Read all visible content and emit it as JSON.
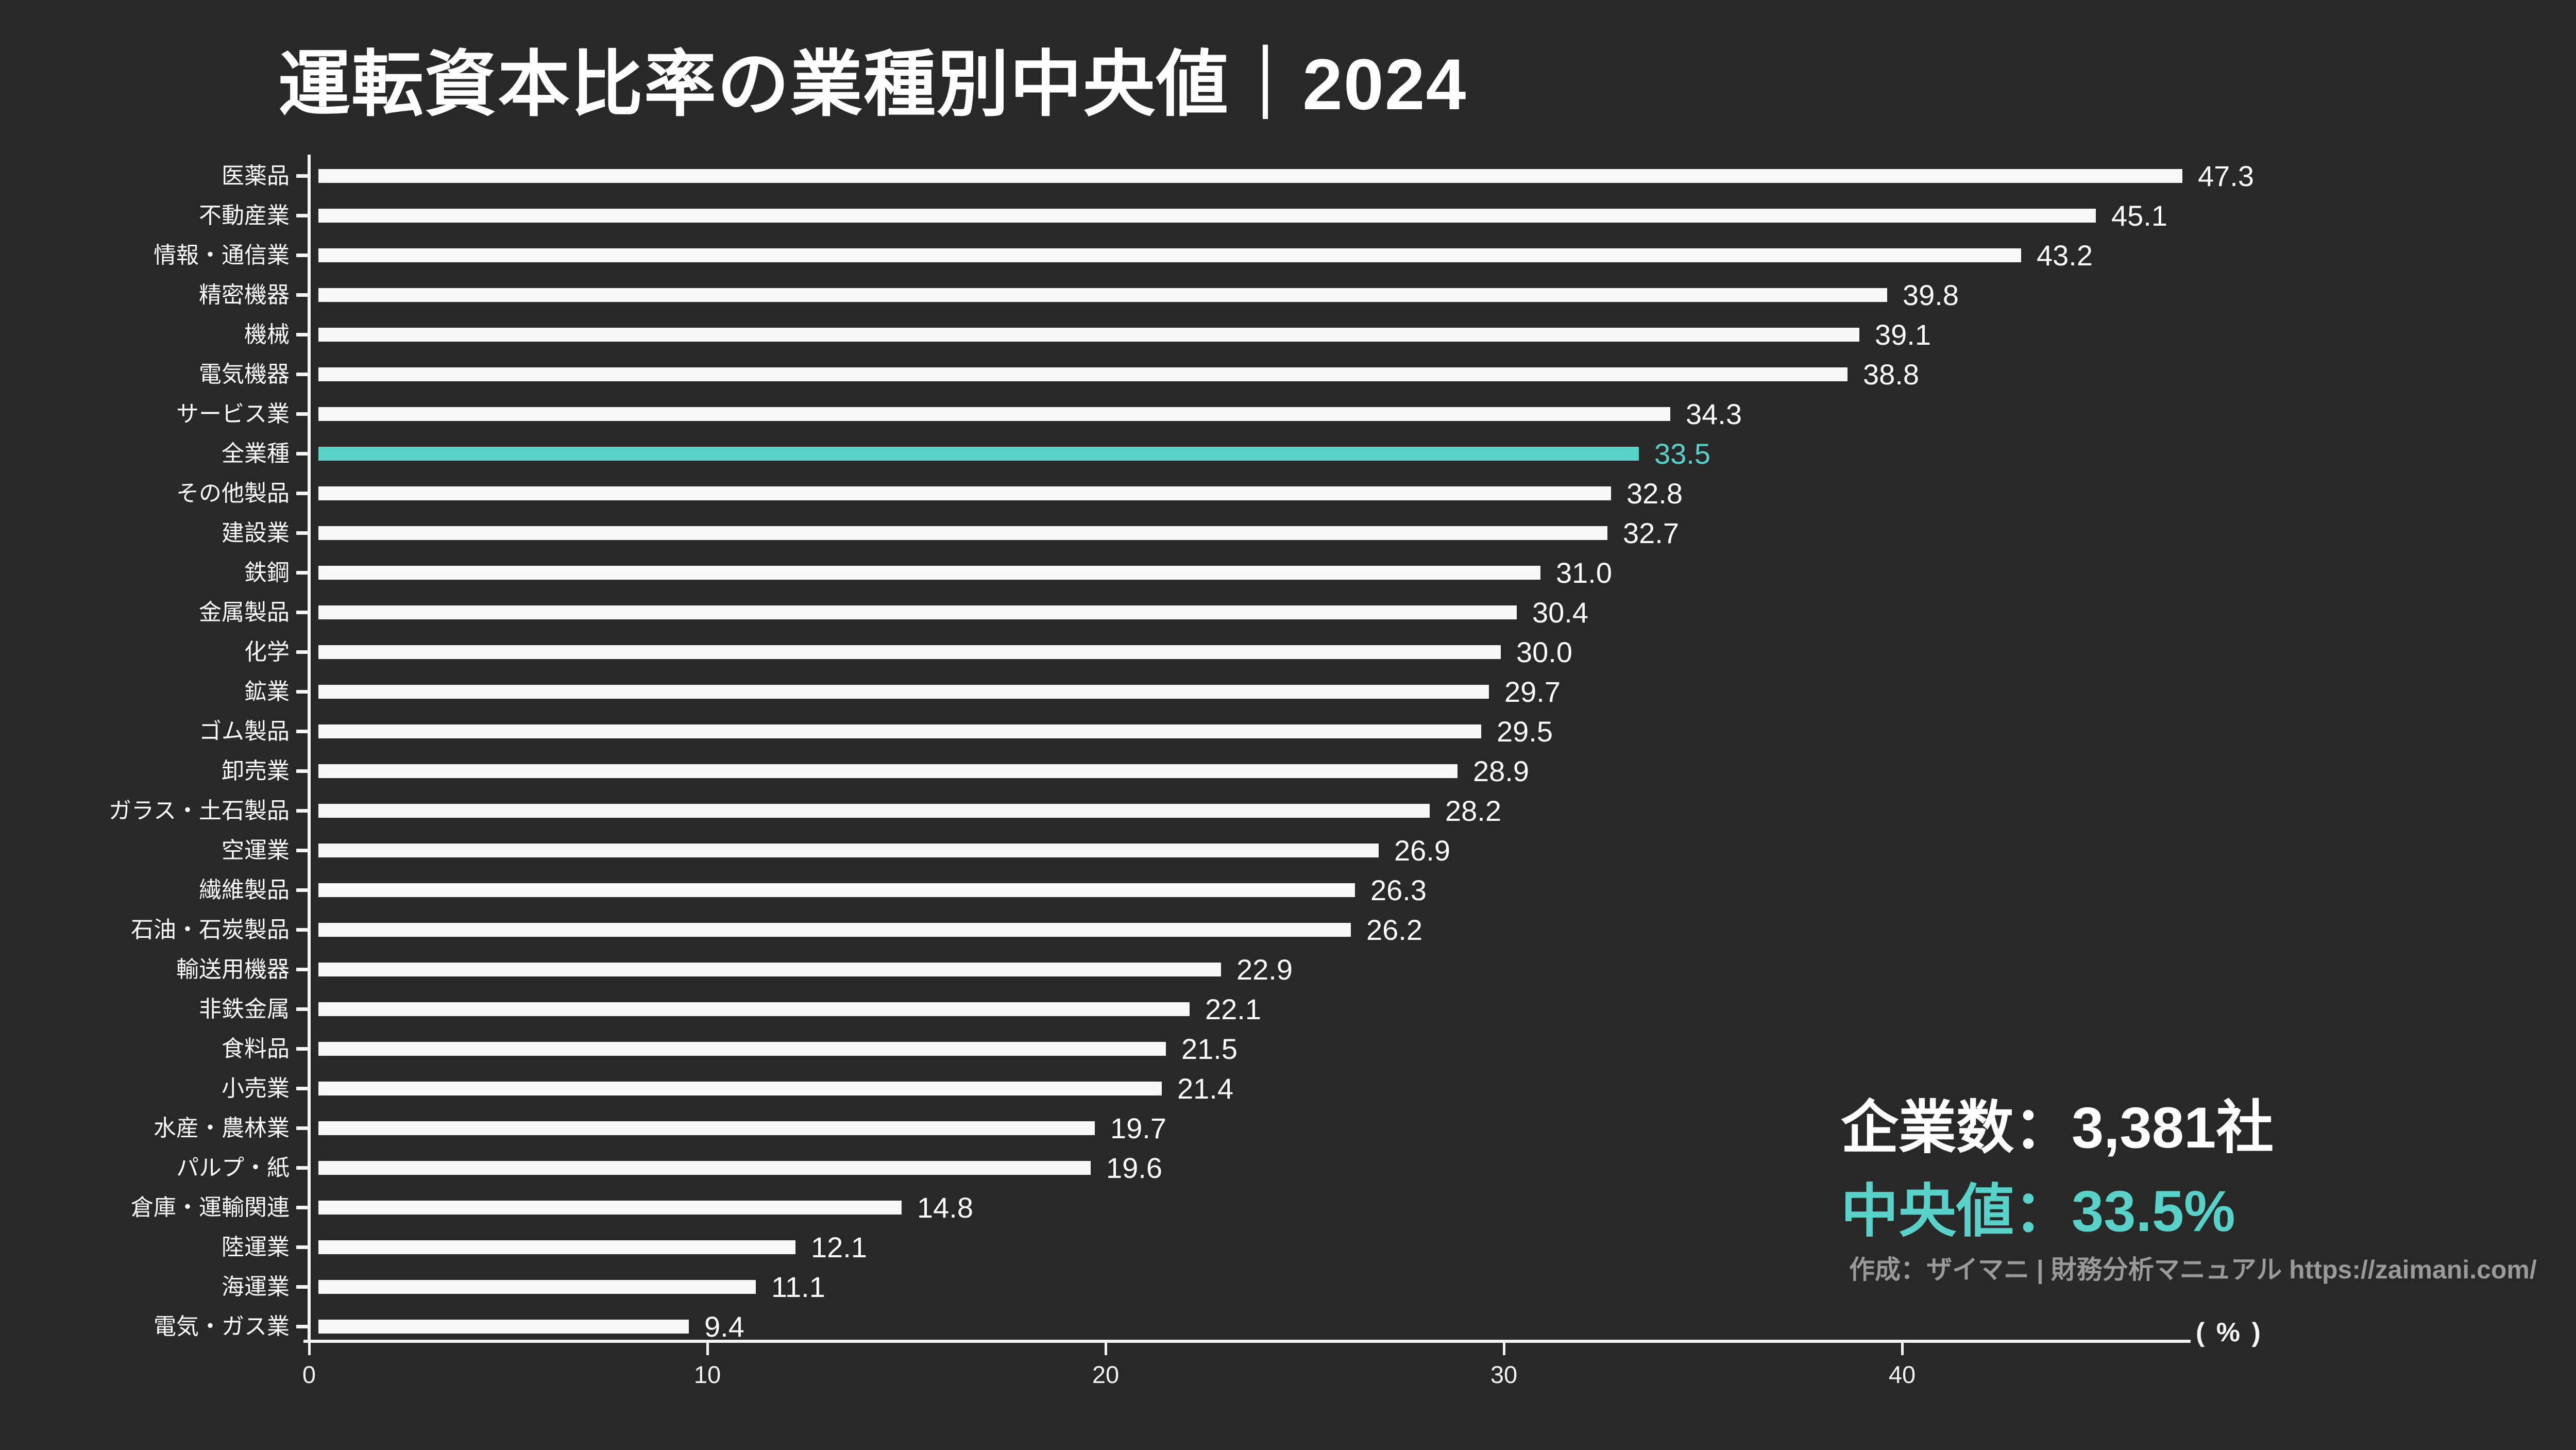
{
  "title": "運転資本比率の業種別中央値｜2024",
  "colors": {
    "background": "#282828",
    "bar": "#f8f8f8",
    "accent": "#58d1c8",
    "text": "#fcfcfc",
    "muted": "#9a9a9a"
  },
  "chart_data": {
    "type": "bar",
    "orientation": "horizontal",
    "title": "運転資本比率の業種別中央値｜2024",
    "categories": [
      "医薬品",
      "不動産業",
      "情報・通信業",
      "精密機器",
      "機械",
      "電気機器",
      "サービス業",
      "全業種",
      "その他製品",
      "建設業",
      "鉄鋼",
      "金属製品",
      "化学",
      "鉱業",
      "ゴム製品",
      "卸売業",
      "ガラス・土石製品",
      "空運業",
      "繊維製品",
      "石油・石炭製品",
      "輸送用機器",
      "非鉄金属",
      "食料品",
      "小売業",
      "水産・農林業",
      "パルプ・紙",
      "倉庫・運輸関連",
      "陸運業",
      "海運業",
      "電気・ガス業"
    ],
    "values": [
      47.3,
      45.1,
      43.2,
      39.8,
      39.1,
      38.8,
      34.3,
      33.5,
      32.8,
      32.7,
      31.0,
      30.4,
      30.0,
      29.7,
      29.5,
      28.9,
      28.2,
      26.9,
      26.3,
      26.2,
      22.9,
      22.1,
      21.5,
      21.4,
      19.7,
      19.6,
      14.8,
      12.1,
      11.1,
      9.4
    ],
    "highlight_index": 7,
    "highlight_category": "全業種",
    "x_ticks": [
      0,
      10,
      20,
      30,
      40
    ],
    "xlim": [
      0,
      48
    ],
    "unit_label": "( % )",
    "grid": false,
    "legend": false
  },
  "annotations": {
    "companies": "企業数：3,381社",
    "median": "中央値：33.5%",
    "credit": "作成：ザイマニ | 財務分析マニュアル https://zaimani.com/"
  }
}
